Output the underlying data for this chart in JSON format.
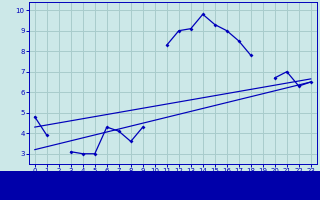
{
  "bg_color": "#cce8e8",
  "grid_color": "#a8cccc",
  "line_color": "#0000bb",
  "label_bg": "#0000aa",
  "label_fg": "#ffffff",
  "hours": [
    0,
    1,
    2,
    3,
    4,
    5,
    6,
    7,
    8,
    9,
    10,
    11,
    12,
    13,
    14,
    15,
    16,
    17,
    18,
    19,
    20,
    21,
    22,
    23
  ],
  "temps": [
    4.8,
    3.9,
    null,
    3.1,
    3.0,
    3.0,
    4.3,
    4.1,
    3.6,
    4.3,
    null,
    8.3,
    9.0,
    9.1,
    9.8,
    9.3,
    9.0,
    8.5,
    7.8,
    null,
    6.7,
    7.0,
    6.3,
    6.5
  ],
  "trend1": {
    "x": [
      0,
      23
    ],
    "y": [
      3.2,
      6.5
    ]
  },
  "trend2": {
    "x": [
      0,
      23
    ],
    "y": [
      4.3,
      6.65
    ]
  },
  "ylim": [
    2.5,
    10.4
  ],
  "xlim": [
    -0.5,
    23.5
  ],
  "yticks": [
    3,
    4,
    5,
    6,
    7,
    8,
    9,
    10
  ],
  "xticks": [
    0,
    1,
    2,
    3,
    4,
    5,
    6,
    7,
    8,
    9,
    10,
    11,
    12,
    13,
    14,
    15,
    16,
    17,
    18,
    19,
    20,
    21,
    22,
    23
  ],
  "tick_fontsize": 5.0,
  "xlabel_fontsize": 6.5
}
